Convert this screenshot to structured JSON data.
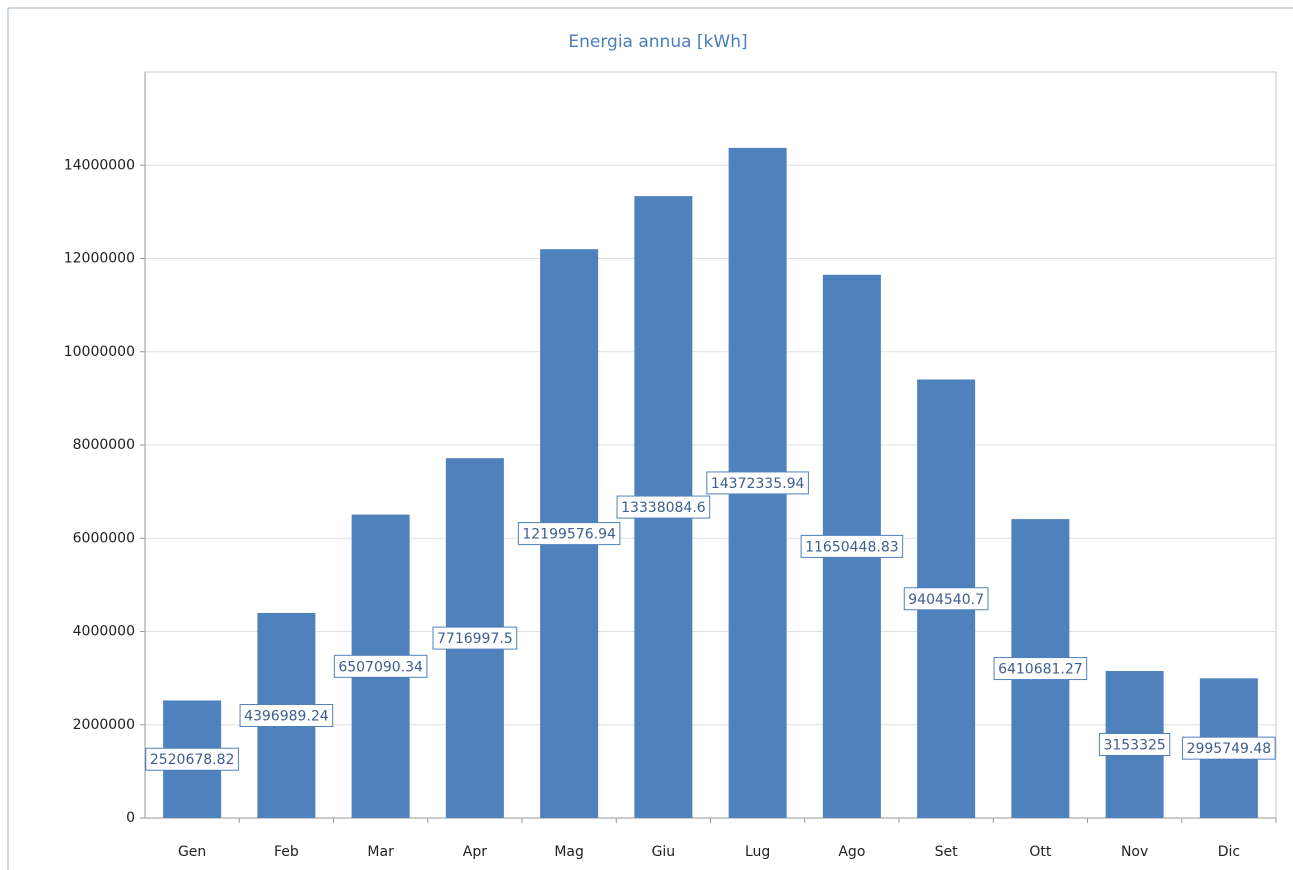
{
  "chart_data": {
    "type": "bar",
    "title": "Energia annua [kWh]",
    "categories": [
      "Gen",
      "Feb",
      "Mar",
      "Apr",
      "Mag",
      "Giu",
      "Lug",
      "Ago",
      "Set",
      "Ott",
      "Nov",
      "Dic"
    ],
    "values": [
      2520678.82,
      4396989.24,
      6507090.34,
      7716997.5,
      12199576.94,
      13338084.6,
      14372335.94,
      11650448.83,
      9404540.7,
      6410681.27,
      3153325,
      2995749.48
    ],
    "color": "#4f81bd",
    "ylim": [
      0,
      16000000
    ],
    "yticks": [
      0,
      2000000,
      4000000,
      6000000,
      8000000,
      10000000,
      12000000,
      14000000
    ],
    "grid": true
  }
}
